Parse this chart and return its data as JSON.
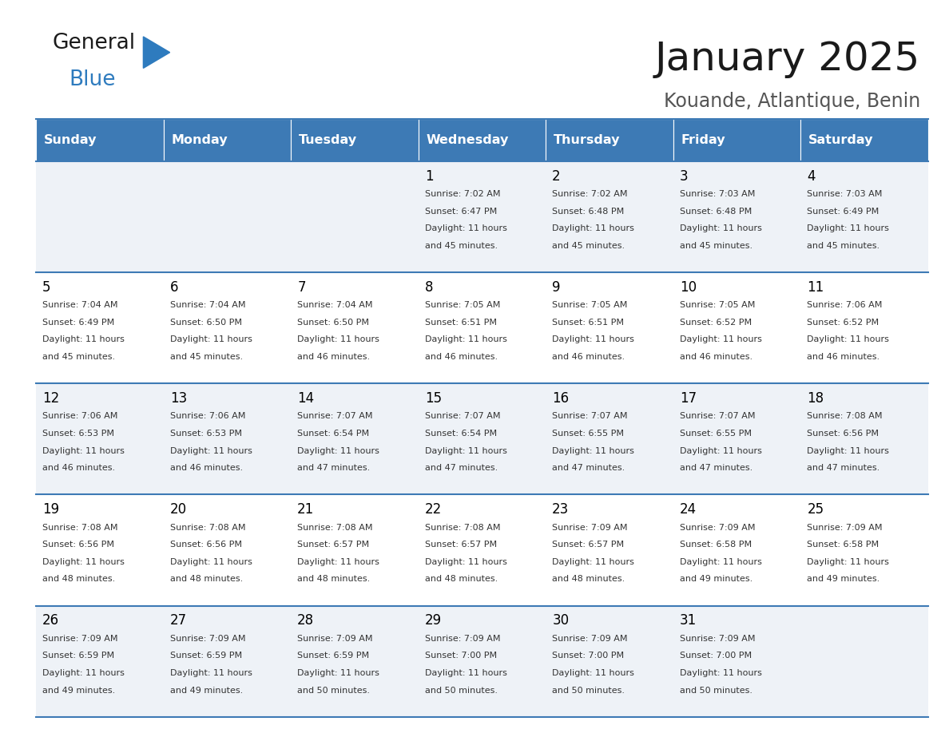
{
  "title": "January 2025",
  "subtitle": "Kouande, Atlantique, Benin",
  "header_bg": "#3d7ab5",
  "header_text_color": "#ffffff",
  "days_of_week": [
    "Sunday",
    "Monday",
    "Tuesday",
    "Wednesday",
    "Thursday",
    "Friday",
    "Saturday"
  ],
  "row_bg_light": "#eef2f7",
  "row_bg_white": "#ffffff",
  "cell_border_color": "#3d7ab5",
  "day_num_color": "#000000",
  "info_text_color": "#333333",
  "logo_general_color": "#1a1a1a",
  "logo_blue_color": "#2e7bbe",
  "logo_triangle_color": "#2e7bbe",
  "title_color": "#1a1a1a",
  "subtitle_color": "#555555",
  "calendar_data": [
    [
      {
        "day": "",
        "sunrise": "",
        "sunset": "",
        "daylight": ""
      },
      {
        "day": "",
        "sunrise": "",
        "sunset": "",
        "daylight": ""
      },
      {
        "day": "",
        "sunrise": "",
        "sunset": "",
        "daylight": ""
      },
      {
        "day": "1",
        "sunrise": "7:02 AM",
        "sunset": "6:47 PM",
        "daylight": "11 hours and 45 minutes."
      },
      {
        "day": "2",
        "sunrise": "7:02 AM",
        "sunset": "6:48 PM",
        "daylight": "11 hours and 45 minutes."
      },
      {
        "day": "3",
        "sunrise": "7:03 AM",
        "sunset": "6:48 PM",
        "daylight": "11 hours and 45 minutes."
      },
      {
        "day": "4",
        "sunrise": "7:03 AM",
        "sunset": "6:49 PM",
        "daylight": "11 hours and 45 minutes."
      }
    ],
    [
      {
        "day": "5",
        "sunrise": "7:04 AM",
        "sunset": "6:49 PM",
        "daylight": "11 hours and 45 minutes."
      },
      {
        "day": "6",
        "sunrise": "7:04 AM",
        "sunset": "6:50 PM",
        "daylight": "11 hours and 45 minutes."
      },
      {
        "day": "7",
        "sunrise": "7:04 AM",
        "sunset": "6:50 PM",
        "daylight": "11 hours and 46 minutes."
      },
      {
        "day": "8",
        "sunrise": "7:05 AM",
        "sunset": "6:51 PM",
        "daylight": "11 hours and 46 minutes."
      },
      {
        "day": "9",
        "sunrise": "7:05 AM",
        "sunset": "6:51 PM",
        "daylight": "11 hours and 46 minutes."
      },
      {
        "day": "10",
        "sunrise": "7:05 AM",
        "sunset": "6:52 PM",
        "daylight": "11 hours and 46 minutes."
      },
      {
        "day": "11",
        "sunrise": "7:06 AM",
        "sunset": "6:52 PM",
        "daylight": "11 hours and 46 minutes."
      }
    ],
    [
      {
        "day": "12",
        "sunrise": "7:06 AM",
        "sunset": "6:53 PM",
        "daylight": "11 hours and 46 minutes."
      },
      {
        "day": "13",
        "sunrise": "7:06 AM",
        "sunset": "6:53 PM",
        "daylight": "11 hours and 46 minutes."
      },
      {
        "day": "14",
        "sunrise": "7:07 AM",
        "sunset": "6:54 PM",
        "daylight": "11 hours and 47 minutes."
      },
      {
        "day": "15",
        "sunrise": "7:07 AM",
        "sunset": "6:54 PM",
        "daylight": "11 hours and 47 minutes."
      },
      {
        "day": "16",
        "sunrise": "7:07 AM",
        "sunset": "6:55 PM",
        "daylight": "11 hours and 47 minutes."
      },
      {
        "day": "17",
        "sunrise": "7:07 AM",
        "sunset": "6:55 PM",
        "daylight": "11 hours and 47 minutes."
      },
      {
        "day": "18",
        "sunrise": "7:08 AM",
        "sunset": "6:56 PM",
        "daylight": "11 hours and 47 minutes."
      }
    ],
    [
      {
        "day": "19",
        "sunrise": "7:08 AM",
        "sunset": "6:56 PM",
        "daylight": "11 hours and 48 minutes."
      },
      {
        "day": "20",
        "sunrise": "7:08 AM",
        "sunset": "6:56 PM",
        "daylight": "11 hours and 48 minutes."
      },
      {
        "day": "21",
        "sunrise": "7:08 AM",
        "sunset": "6:57 PM",
        "daylight": "11 hours and 48 minutes."
      },
      {
        "day": "22",
        "sunrise": "7:08 AM",
        "sunset": "6:57 PM",
        "daylight": "11 hours and 48 minutes."
      },
      {
        "day": "23",
        "sunrise": "7:09 AM",
        "sunset": "6:57 PM",
        "daylight": "11 hours and 48 minutes."
      },
      {
        "day": "24",
        "sunrise": "7:09 AM",
        "sunset": "6:58 PM",
        "daylight": "11 hours and 49 minutes."
      },
      {
        "day": "25",
        "sunrise": "7:09 AM",
        "sunset": "6:58 PM",
        "daylight": "11 hours and 49 minutes."
      }
    ],
    [
      {
        "day": "26",
        "sunrise": "7:09 AM",
        "sunset": "6:59 PM",
        "daylight": "11 hours and 49 minutes."
      },
      {
        "day": "27",
        "sunrise": "7:09 AM",
        "sunset": "6:59 PM",
        "daylight": "11 hours and 49 minutes."
      },
      {
        "day": "28",
        "sunrise": "7:09 AM",
        "sunset": "6:59 PM",
        "daylight": "11 hours and 50 minutes."
      },
      {
        "day": "29",
        "sunrise": "7:09 AM",
        "sunset": "7:00 PM",
        "daylight": "11 hours and 50 minutes."
      },
      {
        "day": "30",
        "sunrise": "7:09 AM",
        "sunset": "7:00 PM",
        "daylight": "11 hours and 50 minutes."
      },
      {
        "day": "31",
        "sunrise": "7:09 AM",
        "sunset": "7:00 PM",
        "daylight": "11 hours and 50 minutes."
      },
      {
        "day": "",
        "sunrise": "",
        "sunset": "",
        "daylight": ""
      }
    ]
  ]
}
